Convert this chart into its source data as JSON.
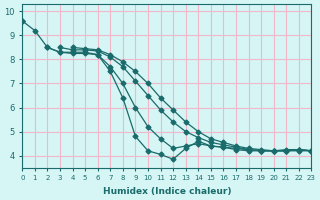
{
  "xlabel": "Humidex (Indice chaleur)",
  "ylabel": "",
  "background_color": "#d6f5f5",
  "grid_color": "#f0b8c8",
  "line_color": "#1a6b6b",
  "xlim": [
    0,
    23
  ],
  "ylim": [
    3.5,
    10.3
  ],
  "xticks": [
    0,
    1,
    2,
    3,
    4,
    5,
    6,
    7,
    8,
    9,
    10,
    11,
    12,
    13,
    14,
    15,
    16,
    17,
    18,
    19,
    20,
    21,
    22,
    23
  ],
  "yticks": [
    4,
    5,
    6,
    7,
    8,
    9,
    10
  ],
  "curves": [
    [
      9.6,
      9.2,
      8.5,
      8.3,
      8.3,
      8.3,
      8.2,
      7.5,
      6.4,
      4.8,
      4.2,
      4.05,
      3.85,
      4.3,
      4.6,
      4.4,
      4.35,
      4.25,
      4.2,
      4.2,
      4.2,
      4.25,
      4.25,
      4.2
    ],
    [
      9.6,
      null,
      8.5,
      8.3,
      8.25,
      8.25,
      8.2,
      7.7,
      7.0,
      6.0,
      5.2,
      4.7,
      4.3,
      4.4,
      4.5,
      4.4,
      4.35,
      4.3,
      4.25,
      4.2,
      4.2,
      4.2,
      4.2,
      4.2
    ],
    [
      9.6,
      null,
      null,
      8.5,
      8.4,
      8.4,
      8.35,
      8.1,
      7.7,
      7.1,
      6.5,
      5.9,
      5.4,
      5.0,
      4.75,
      4.55,
      4.45,
      4.35,
      4.25,
      4.2,
      4.2,
      4.2,
      4.25,
      4.2
    ],
    [
      9.6,
      null,
      null,
      null,
      8.5,
      8.45,
      8.4,
      8.2,
      7.9,
      7.5,
      7.0,
      6.4,
      5.9,
      5.4,
      5.0,
      4.7,
      4.55,
      4.4,
      4.3,
      4.25,
      4.2,
      4.2,
      4.25,
      4.2
    ]
  ]
}
